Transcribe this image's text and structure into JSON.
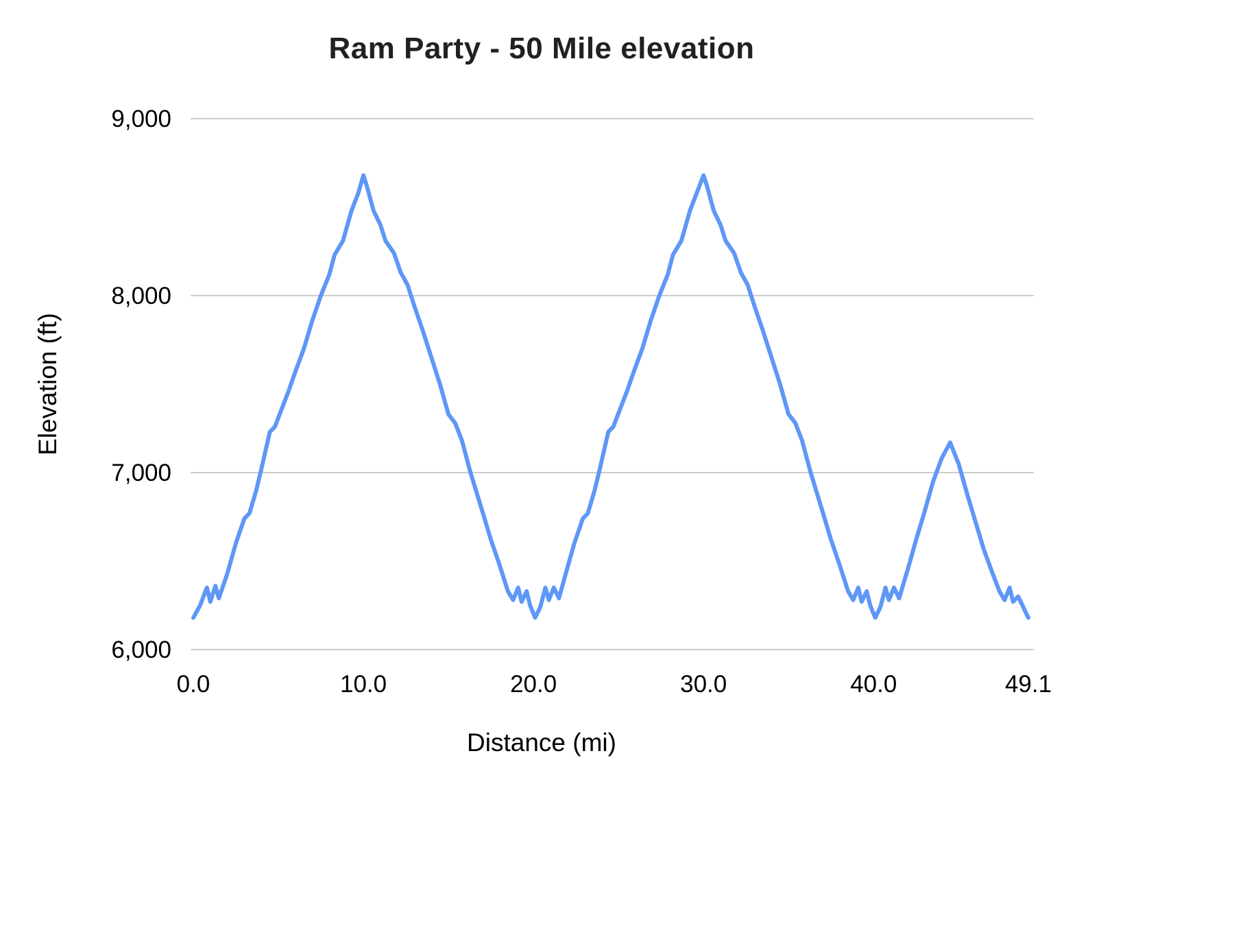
{
  "chart_data": {
    "type": "line",
    "title": "Ram Party - 50 Mile elevation",
    "xlabel": "Distance (mi)",
    "ylabel": "Elevation (ft)",
    "xlim": [
      0,
      49.1
    ],
    "ylim": [
      6000,
      9000
    ],
    "grid": "horizontal",
    "legend": "none",
    "line_color": "#5e97f6",
    "grid_color": "#cccccc",
    "x_ticks": [
      {
        "value": 0,
        "label": "0.0"
      },
      {
        "value": 10,
        "label": "10.0"
      },
      {
        "value": 20,
        "label": "20.0"
      },
      {
        "value": 30,
        "label": "30.0"
      },
      {
        "value": 40,
        "label": "40.0"
      },
      {
        "value": 49.1,
        "label": "49.1"
      }
    ],
    "y_ticks": [
      {
        "value": 6000,
        "label": "6,000"
      },
      {
        "value": 7000,
        "label": "7,000"
      },
      {
        "value": 8000,
        "label": "8,000"
      },
      {
        "value": 9000,
        "label": "9,000"
      }
    ],
    "series": [
      {
        "name": "Elevation",
        "points": [
          [
            0.0,
            6180
          ],
          [
            0.4,
            6250
          ],
          [
            0.8,
            6350
          ],
          [
            1.0,
            6270
          ],
          [
            1.3,
            6360
          ],
          [
            1.5,
            6290
          ],
          [
            2.0,
            6430
          ],
          [
            2.5,
            6600
          ],
          [
            3.0,
            6740
          ],
          [
            3.3,
            6770
          ],
          [
            3.7,
            6900
          ],
          [
            4.0,
            7020
          ],
          [
            4.5,
            7230
          ],
          [
            4.8,
            7260
          ],
          [
            5.2,
            7360
          ],
          [
            5.6,
            7460
          ],
          [
            6.0,
            7570
          ],
          [
            6.5,
            7700
          ],
          [
            7.0,
            7860
          ],
          [
            7.5,
            8000
          ],
          [
            8.0,
            8120
          ],
          [
            8.3,
            8230
          ],
          [
            8.8,
            8310
          ],
          [
            9.3,
            8480
          ],
          [
            9.7,
            8580
          ],
          [
            10.0,
            8680
          ],
          [
            10.2,
            8620
          ],
          [
            10.6,
            8480
          ],
          [
            11.0,
            8400
          ],
          [
            11.3,
            8310
          ],
          [
            11.8,
            8240
          ],
          [
            12.2,
            8130
          ],
          [
            12.6,
            8060
          ],
          [
            13.0,
            7940
          ],
          [
            13.5,
            7800
          ],
          [
            14.0,
            7650
          ],
          [
            14.5,
            7500
          ],
          [
            15.0,
            7330
          ],
          [
            15.4,
            7280
          ],
          [
            15.8,
            7180
          ],
          [
            16.3,
            7000
          ],
          [
            17.0,
            6780
          ],
          [
            17.5,
            6620
          ],
          [
            18.0,
            6480
          ],
          [
            18.5,
            6330
          ],
          [
            18.8,
            6280
          ],
          [
            19.1,
            6350
          ],
          [
            19.3,
            6270
          ],
          [
            19.6,
            6330
          ],
          [
            19.8,
            6250
          ],
          [
            20.1,
            6180
          ],
          [
            20.4,
            6240
          ],
          [
            20.7,
            6350
          ],
          [
            20.9,
            6280
          ],
          [
            21.2,
            6350
          ],
          [
            21.5,
            6290
          ],
          [
            21.9,
            6430
          ],
          [
            22.4,
            6600
          ],
          [
            22.9,
            6740
          ],
          [
            23.2,
            6770
          ],
          [
            23.6,
            6900
          ],
          [
            23.9,
            7020
          ],
          [
            24.4,
            7230
          ],
          [
            24.7,
            7260
          ],
          [
            25.1,
            7360
          ],
          [
            25.5,
            7460
          ],
          [
            25.9,
            7570
          ],
          [
            26.4,
            7700
          ],
          [
            26.9,
            7860
          ],
          [
            27.4,
            8000
          ],
          [
            27.9,
            8120
          ],
          [
            28.2,
            8230
          ],
          [
            28.7,
            8310
          ],
          [
            29.2,
            8480
          ],
          [
            29.6,
            8580
          ],
          [
            30.0,
            8680
          ],
          [
            30.2,
            8620
          ],
          [
            30.6,
            8480
          ],
          [
            31.0,
            8400
          ],
          [
            31.3,
            8310
          ],
          [
            31.8,
            8240
          ],
          [
            32.2,
            8130
          ],
          [
            32.6,
            8060
          ],
          [
            33.0,
            7940
          ],
          [
            33.5,
            7800
          ],
          [
            34.0,
            7650
          ],
          [
            34.5,
            7500
          ],
          [
            35.0,
            7330
          ],
          [
            35.4,
            7280
          ],
          [
            35.8,
            7180
          ],
          [
            36.3,
            7000
          ],
          [
            37.0,
            6780
          ],
          [
            37.5,
            6620
          ],
          [
            38.0,
            6480
          ],
          [
            38.5,
            6330
          ],
          [
            38.8,
            6280
          ],
          [
            39.1,
            6350
          ],
          [
            39.3,
            6270
          ],
          [
            39.6,
            6330
          ],
          [
            39.8,
            6250
          ],
          [
            40.1,
            6180
          ],
          [
            40.4,
            6240
          ],
          [
            40.7,
            6350
          ],
          [
            40.9,
            6280
          ],
          [
            41.2,
            6350
          ],
          [
            41.5,
            6290
          ],
          [
            42.0,
            6450
          ],
          [
            42.5,
            6620
          ],
          [
            43.0,
            6780
          ],
          [
            43.5,
            6950
          ],
          [
            44.0,
            7080
          ],
          [
            44.5,
            7170
          ],
          [
            45.0,
            7050
          ],
          [
            45.5,
            6880
          ],
          [
            46.0,
            6720
          ],
          [
            46.5,
            6560
          ],
          [
            47.0,
            6430
          ],
          [
            47.4,
            6330
          ],
          [
            47.7,
            6280
          ],
          [
            48.0,
            6350
          ],
          [
            48.2,
            6270
          ],
          [
            48.5,
            6300
          ],
          [
            48.8,
            6240
          ],
          [
            49.1,
            6180
          ]
        ]
      }
    ]
  }
}
